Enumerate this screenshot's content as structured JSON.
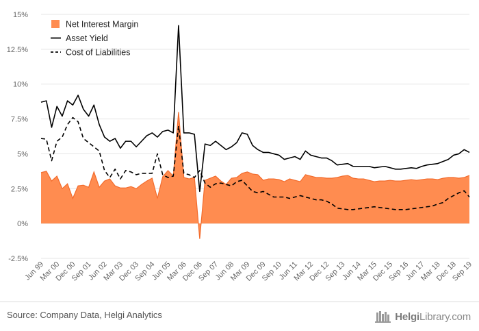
{
  "chart_data": {
    "type": "area",
    "title": "",
    "xlabel": "",
    "ylabel": "",
    "ylim": [
      -2.5,
      15
    ],
    "yticks": [
      -2.5,
      0,
      2.5,
      5,
      7.5,
      10,
      12.5,
      15
    ],
    "ytick_labels": [
      "-2.5%",
      "0%",
      "2.5%",
      "5%",
      "7.5%",
      "10%",
      "12.5%",
      "15%"
    ],
    "x_tick_labels": [
      "Jun 99",
      "Mar 00",
      "Dec 00",
      "Sep 01",
      "Jun 02",
      "Mar 03",
      "Dec 03",
      "Sep 04",
      "Jun 05",
      "Mar 06",
      "Dec 06",
      "Sep 07",
      "Jun 08",
      "Mar 09",
      "Dec 09",
      "Sep 10",
      "Jun 11",
      "Mar 12",
      "Dec 12",
      "Sep 13",
      "Jun 14",
      "Mar 15",
      "Dec 15",
      "Sep 16",
      "Jun 17",
      "Mar 18",
      "Dec 18",
      "Sep 19"
    ],
    "grid": true,
    "legend_position": "top-left",
    "colors": {
      "net_interest_margin": "#FF8C50",
      "net_interest_margin_edge": "#F26B2C",
      "asset_yield": "#000000",
      "cost_of_liabilities": "#000000",
      "grid": "#E5E5E5"
    },
    "series": [
      {
        "name": "Net Interest Margin",
        "style": "area",
        "values": [
          3.65,
          3.75,
          3.05,
          3.4,
          2.5,
          2.85,
          1.8,
          2.7,
          2.75,
          2.6,
          3.7,
          2.6,
          3.05,
          3.2,
          2.7,
          2.55,
          2.55,
          2.65,
          2.5,
          2.8,
          3.05,
          3.25,
          1.8,
          3.35,
          3.8,
          3.4,
          8.0,
          3.3,
          3.2,
          3.3,
          -1.1,
          3.1,
          3.25,
          3.4,
          3.05,
          2.8,
          3.25,
          3.3,
          3.6,
          3.7,
          3.55,
          3.5,
          3.1,
          3.2,
          3.2,
          3.15,
          3.0,
          3.2,
          3.1,
          3.0,
          3.5,
          3.4,
          3.3,
          3.3,
          3.25,
          3.25,
          3.3,
          3.4,
          3.45,
          3.25,
          3.2,
          3.2,
          3.1,
          3.0,
          3.05,
          3.05,
          3.1,
          3.05,
          3.05,
          3.1,
          3.15,
          3.1,
          3.15,
          3.2,
          3.2,
          3.15,
          3.25,
          3.3,
          3.3,
          3.25,
          3.3,
          3.45
        ]
      },
      {
        "name": "Asset Yield",
        "style": "solid",
        "values": [
          8.7,
          8.8,
          6.9,
          8.4,
          7.7,
          8.8,
          8.5,
          9.2,
          8.2,
          7.7,
          8.5,
          7.1,
          6.2,
          5.9,
          6.1,
          5.4,
          5.9,
          5.9,
          5.5,
          5.9,
          6.3,
          6.5,
          6.2,
          6.6,
          6.7,
          6.5,
          14.2,
          6.5,
          6.5,
          6.4,
          2.3,
          5.7,
          5.6,
          5.9,
          5.6,
          5.3,
          5.5,
          5.8,
          6.5,
          6.4,
          5.6,
          5.3,
          5.1,
          5.1,
          5.0,
          4.9,
          4.6,
          4.7,
          4.8,
          4.6,
          5.2,
          4.9,
          4.8,
          4.7,
          4.7,
          4.5,
          4.2,
          4.25,
          4.3,
          4.1,
          4.1,
          4.1,
          4.1,
          4.0,
          4.05,
          4.1,
          4.0,
          3.9,
          3.9,
          3.95,
          4.0,
          3.95,
          4.1,
          4.2,
          4.25,
          4.3,
          4.45,
          4.6,
          4.9,
          5.0,
          5.3,
          5.1
        ]
      },
      {
        "name": "Cost of Liabilities",
        "style": "dashed",
        "values": [
          6.1,
          6.05,
          4.5,
          5.9,
          6.2,
          7.1,
          7.6,
          7.3,
          6.1,
          5.8,
          5.5,
          5.2,
          3.8,
          3.3,
          3.9,
          3.2,
          3.8,
          3.7,
          3.5,
          3.6,
          3.6,
          3.6,
          5.0,
          3.5,
          3.3,
          3.4,
          7.0,
          3.6,
          3.5,
          3.3,
          3.8,
          2.9,
          2.6,
          2.85,
          2.9,
          2.8,
          2.7,
          3.0,
          3.1,
          2.7,
          2.3,
          2.2,
          2.3,
          2.1,
          1.9,
          1.9,
          1.9,
          1.8,
          1.9,
          2.0,
          1.9,
          1.8,
          1.7,
          1.7,
          1.6,
          1.4,
          1.1,
          1.05,
          1.0,
          1.0,
          1.05,
          1.1,
          1.15,
          1.2,
          1.15,
          1.1,
          1.05,
          1.0,
          1.0,
          1.0,
          1.05,
          1.1,
          1.15,
          1.2,
          1.25,
          1.4,
          1.5,
          1.8,
          2.0,
          2.2,
          2.35,
          1.9
        ]
      }
    ]
  },
  "footer": {
    "source": "Source: Company Data, Helgi Analytics",
    "brand_name_bold": "Helgi",
    "brand_name_rest": "Library.com"
  }
}
